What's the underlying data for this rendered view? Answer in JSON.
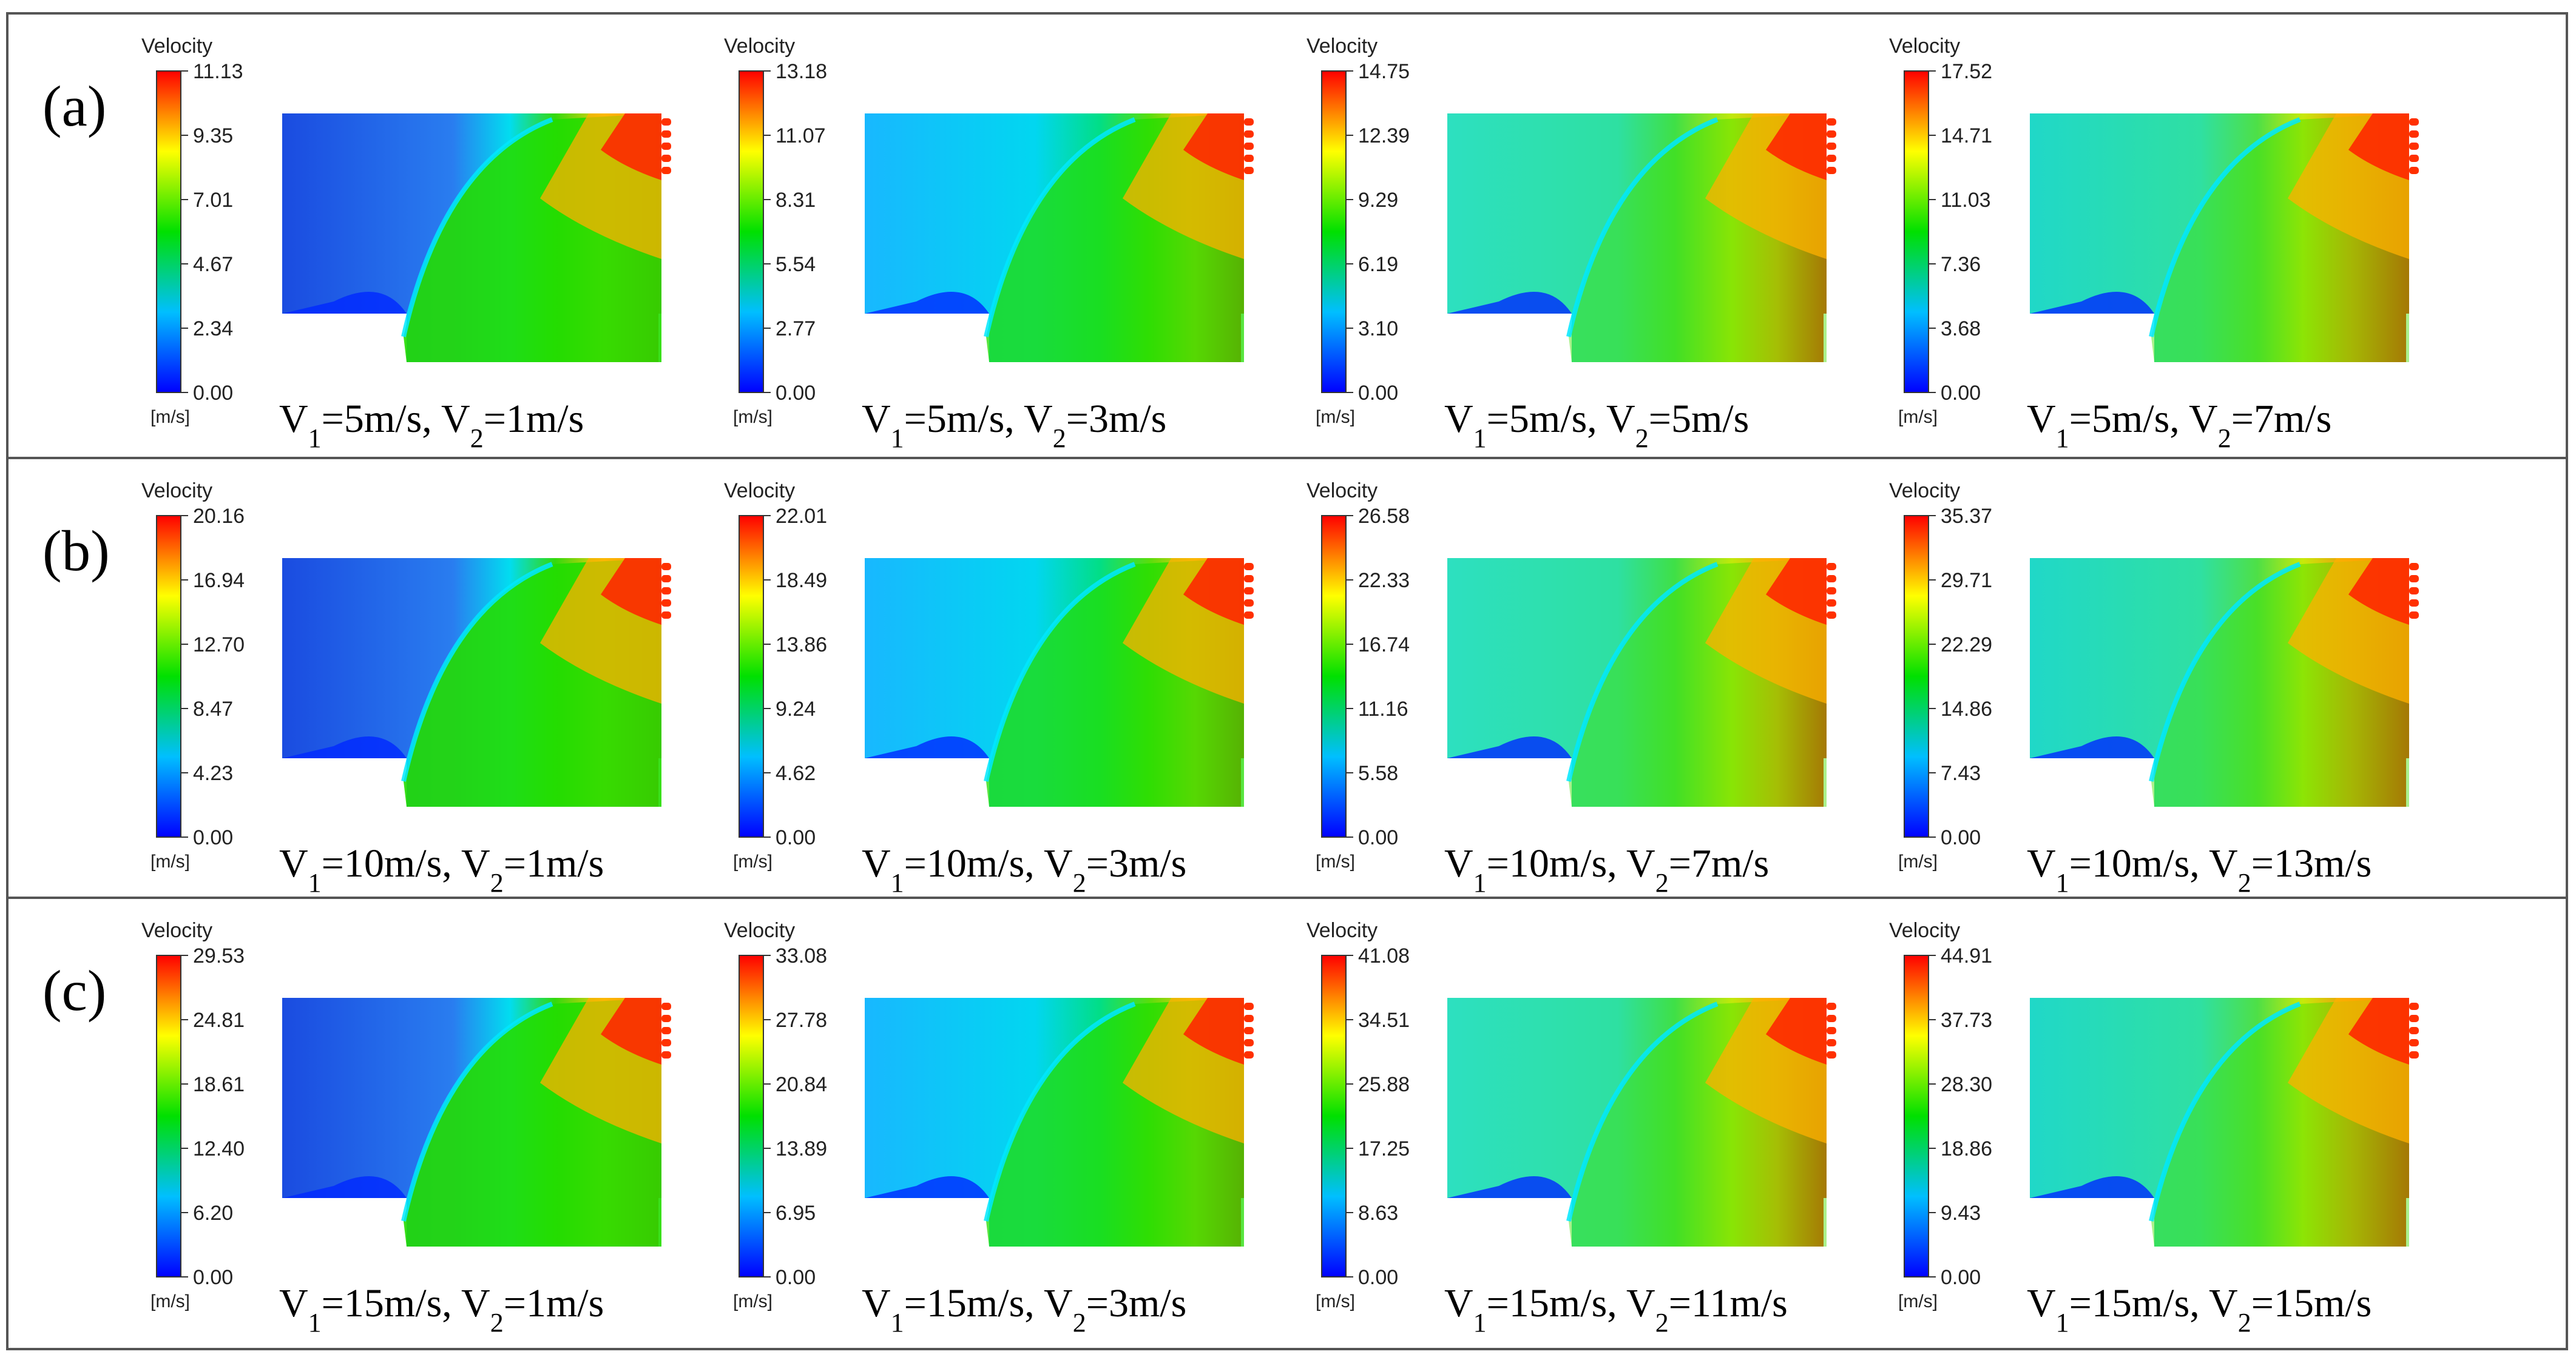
{
  "figure": {
    "unit_label": "[m/s]",
    "colorbar_title": "Velocity",
    "rows": [
      {
        "label": "(a)",
        "panels": [
          {
            "ticks": [
              "11.13",
              "9.35",
              "7.01",
              "4.67",
              "2.34",
              "0.00"
            ],
            "caption": {
              "v1": "V",
              "s1": "1",
              "eq1": "=5m/s, V",
              "s2": "2",
              "eq2": "=1m/s"
            },
            "flow": "low"
          },
          {
            "ticks": [
              "13.18",
              "11.07",
              "8.31",
              "5.54",
              "2.77",
              "0.00"
            ],
            "caption": {
              "v1": "V",
              "s1": "1",
              "eq1": "=5m/s, V",
              "s2": "2",
              "eq2": "=3m/s"
            },
            "flow": "mid"
          },
          {
            "ticks": [
              "14.75",
              "12.39",
              "9.29",
              "6.19",
              "3.10",
              "0.00"
            ],
            "caption": {
              "v1": "V",
              "s1": "1",
              "eq1": "=5m/s, V",
              "s2": "2",
              "eq2": "=5m/s"
            },
            "flow": "high"
          },
          {
            "ticks": [
              "17.52",
              "14.71",
              "11.03",
              "7.36",
              "3.68",
              "0.00"
            ],
            "caption": {
              "v1": "V",
              "s1": "1",
              "eq1": "=5m/s, V",
              "s2": "2",
              "eq2": "=7m/s"
            },
            "flow": "max"
          }
        ]
      },
      {
        "label": "(b)",
        "panels": [
          {
            "ticks": [
              "20.16",
              "16.94",
              "12.70",
              "8.47",
              "4.23",
              "0.00"
            ],
            "caption": {
              "v1": "V",
              "s1": "1",
              "eq1": "=10m/s, V",
              "s2": "2",
              "eq2": "=1m/s"
            },
            "flow": "low"
          },
          {
            "ticks": [
              "22.01",
              "18.49",
              "13.86",
              "9.24",
              "4.62",
              "0.00"
            ],
            "caption": {
              "v1": "V",
              "s1": "1",
              "eq1": "=10m/s, V",
              "s2": "2",
              "eq2": "=3m/s"
            },
            "flow": "mid"
          },
          {
            "ticks": [
              "26.58",
              "22.33",
              "16.74",
              "11.16",
              "5.58",
              "0.00"
            ],
            "caption": {
              "v1": "V",
              "s1": "1",
              "eq1": "=10m/s, V",
              "s2": "2",
              "eq2": "=7m/s"
            },
            "flow": "high"
          },
          {
            "ticks": [
              "35.37",
              "29.71",
              "22.29",
              "14.86",
              "7.43",
              "0.00"
            ],
            "caption": {
              "v1": "V",
              "s1": "1",
              "eq1": "=10m/s, V",
              "s2": "2",
              "eq2": "=13m/s"
            },
            "flow": "max"
          }
        ]
      },
      {
        "label": "(c)",
        "panels": [
          {
            "ticks": [
              "29.53",
              "24.81",
              "18.61",
              "12.40",
              "6.20",
              "0.00"
            ],
            "caption": {
              "v1": "V",
              "s1": "1",
              "eq1": "=15m/s, V",
              "s2": "2",
              "eq2": "=1m/s"
            },
            "flow": "low"
          },
          {
            "ticks": [
              "33.08",
              "27.78",
              "20.84",
              "13.89",
              "6.95",
              "0.00"
            ],
            "caption": {
              "v1": "V",
              "s1": "1",
              "eq1": "=15m/s, V",
              "s2": "2",
              "eq2": "=3m/s"
            },
            "flow": "mid"
          },
          {
            "ticks": [
              "41.08",
              "34.51",
              "25.88",
              "17.25",
              "8.63",
              "0.00"
            ],
            "caption": {
              "v1": "V",
              "s1": "1",
              "eq1": "=15m/s, V",
              "s2": "2",
              "eq2": "=11m/s"
            },
            "flow": "high"
          },
          {
            "ticks": [
              "44.91",
              "37.73",
              "28.30",
              "18.86",
              "9.43",
              "0.00"
            ],
            "caption": {
              "v1": "V",
              "s1": "1",
              "eq1": "=15m/s, V",
              "s2": "2",
              "eq2": "=15m/s"
            },
            "flow": "max"
          }
        ]
      }
    ],
    "colormap": [
      "#0000ff",
      "#00bfff",
      "#00e000",
      "#ffff00",
      "#ff0000"
    ]
  }
}
